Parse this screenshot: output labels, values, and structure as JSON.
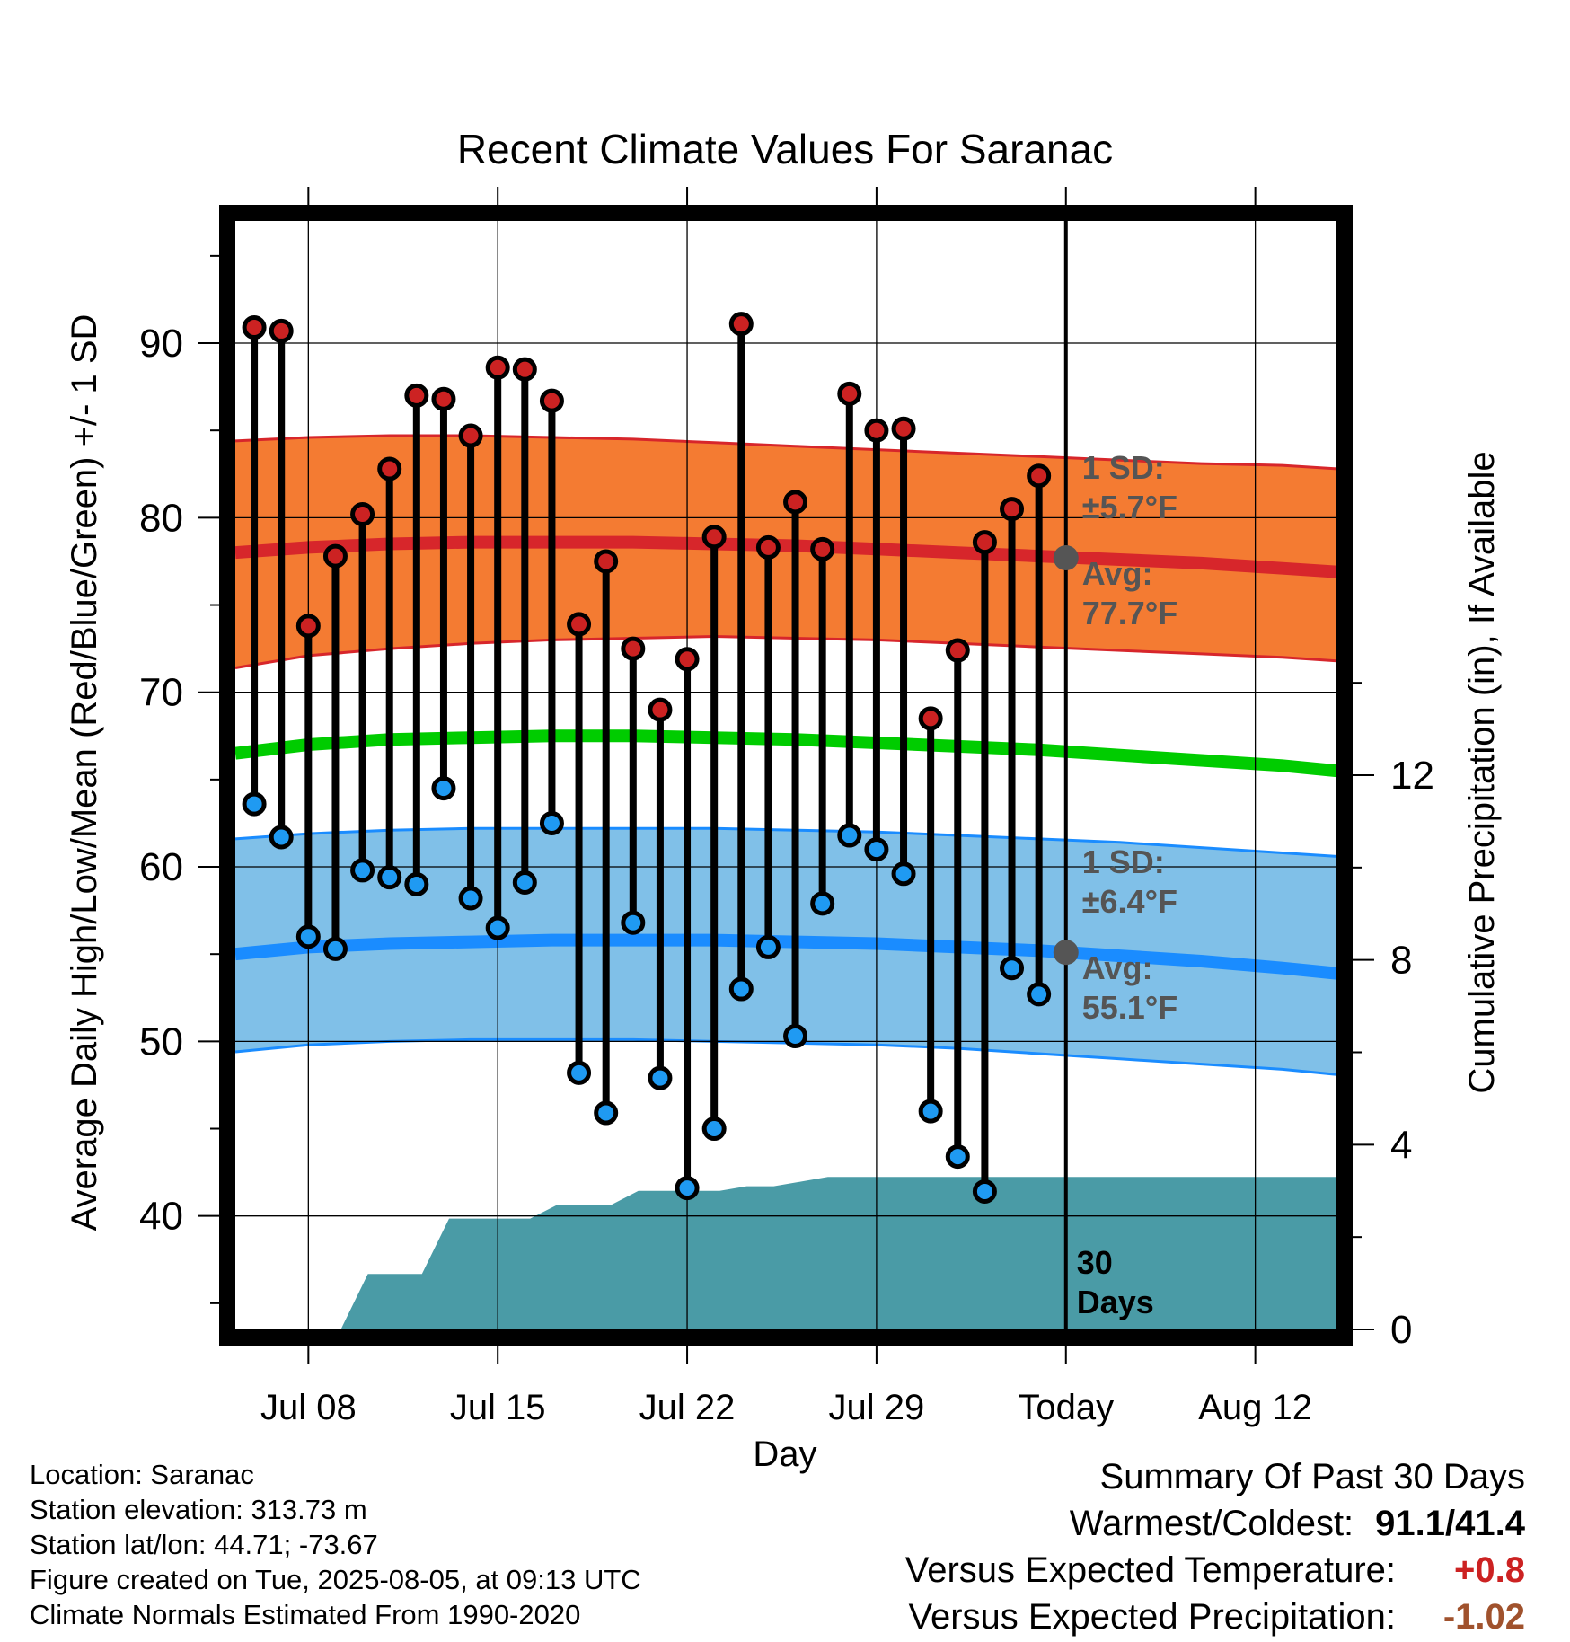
{
  "chart_data": {
    "type": "line",
    "title": "Recent Climate Values For Saranac",
    "xlabel": "Day",
    "ylabel": "Average Daily High/Low/Mean (Red/Blue/Green) +/- 1 SD",
    "y2label": "Cumulative Precipitation (in), If Available",
    "ylim": [
      33.5,
      97
    ],
    "y2lim": [
      0,
      24
    ],
    "x_tick_labels": [
      "Jul 08",
      "Jul 15",
      "Jul 22",
      "Jul 29",
      "Today",
      "Aug 12"
    ],
    "x_tick_days": [
      8,
      15,
      22,
      29,
      36,
      43
    ],
    "y_ticks": [
      40,
      50,
      60,
      70,
      80,
      90
    ],
    "y2_ticks": [
      0,
      4,
      8,
      12
    ],
    "xlim": [
      5.3,
      46.0
    ],
    "today_day": 36,
    "grid": true,
    "daily_observations": {
      "day": [
        6,
        7,
        8,
        9,
        10,
        11,
        12,
        13,
        14,
        15,
        16,
        17,
        18,
        19,
        20,
        21,
        22,
        23,
        24,
        25,
        26,
        27,
        28,
        29,
        30,
        31,
        32,
        33,
        34,
        35
      ],
      "high": [
        90.9,
        90.7,
        73.8,
        77.8,
        80.2,
        82.8,
        87.0,
        86.8,
        84.7,
        88.6,
        88.5,
        86.7,
        73.9,
        77.5,
        72.5,
        69.0,
        71.9,
        78.9,
        91.1,
        78.3,
        80.9,
        78.2,
        87.1,
        85.0,
        85.1,
        68.5,
        72.4,
        78.6,
        80.5,
        82.4
      ],
      "low": [
        63.6,
        61.7,
        56.0,
        55.3,
        59.8,
        59.4,
        59.0,
        64.5,
        58.2,
        56.5,
        59.1,
        62.5,
        48.2,
        45.9,
        56.8,
        47.9,
        41.6,
        45.0,
        53.0,
        55.4,
        50.3,
        57.9,
        61.8,
        61.0,
        59.6,
        46.0,
        43.4,
        41.4,
        54.2,
        52.7
      ]
    },
    "normals": {
      "day": [
        5.3,
        8,
        11,
        14,
        17,
        20,
        23,
        26,
        29,
        32,
        35,
        38,
        41,
        44,
        46.0
      ],
      "high_avg": [
        78.0,
        78.3,
        78.5,
        78.6,
        78.6,
        78.6,
        78.5,
        78.4,
        78.2,
        78.0,
        77.8,
        77.6,
        77.4,
        77.1,
        76.9
      ],
      "high_sd_upper": [
        84.4,
        84.6,
        84.7,
        84.7,
        84.6,
        84.5,
        84.3,
        84.1,
        83.9,
        83.7,
        83.5,
        83.3,
        83.1,
        83.0,
        82.8
      ],
      "high_sd_lower": [
        71.4,
        72.1,
        72.5,
        72.8,
        73.0,
        73.1,
        73.2,
        73.1,
        73.0,
        72.8,
        72.6,
        72.4,
        72.2,
        72.0,
        71.8
      ],
      "mean_avg": [
        66.5,
        67.0,
        67.3,
        67.4,
        67.5,
        67.5,
        67.4,
        67.3,
        67.1,
        66.9,
        66.7,
        66.4,
        66.1,
        65.8,
        65.5
      ],
      "low_avg": [
        55.0,
        55.4,
        55.6,
        55.7,
        55.8,
        55.8,
        55.8,
        55.7,
        55.6,
        55.4,
        55.2,
        54.9,
        54.6,
        54.2,
        53.9
      ],
      "low_sd_upper": [
        61.6,
        61.9,
        62.1,
        62.2,
        62.2,
        62.2,
        62.2,
        62.1,
        62.0,
        61.8,
        61.6,
        61.4,
        61.1,
        60.8,
        60.6
      ],
      "low_sd_lower": [
        49.4,
        49.8,
        50.0,
        50.1,
        50.1,
        50.1,
        50.0,
        49.9,
        49.8,
        49.6,
        49.3,
        49.0,
        48.7,
        48.4,
        48.1
      ]
    },
    "cumulative_precipitation": {
      "day": [
        5.3,
        9.2,
        10.2,
        10.2,
        12.2,
        13.2,
        13.2,
        16.2,
        17.2,
        18.2,
        19.2,
        20.2,
        21.2,
        23.2,
        24.2,
        25.2,
        26.2,
        27.2,
        46.0
      ],
      "inches": [
        0,
        0,
        1.2,
        1.2,
        1.2,
        2.4,
        2.4,
        2.4,
        2.7,
        2.7,
        2.7,
        3.0,
        3.0,
        3.0,
        3.1,
        3.1,
        3.2,
        3.3,
        3.3
      ]
    },
    "annotations": {
      "high_sd_label": "1 SD:",
      "high_sd_value": "±5.7°F",
      "high_avg_label": "Avg:",
      "high_avg_value": "77.7°F",
      "high_avg_today": 77.7,
      "low_sd_label": "1 SD:",
      "low_sd_value": "±6.4°F",
      "low_avg_label": "Avg:",
      "low_avg_value": "55.1°F",
      "low_avg_today": 55.1,
      "days_label_1": "30",
      "days_label_2": "Days"
    },
    "colors": {
      "high_band": "#f47b32",
      "high_line": "#d7262b",
      "mean_line": "#00cc00",
      "low_band": "#80c0e8",
      "low_line": "#1a8cff",
      "precip": "#4a9ba6",
      "high_marker": "#cc2222",
      "low_marker": "#1f9af2",
      "annotation_text": "#555555"
    }
  },
  "info": {
    "location": "Location: Saranac",
    "elevation": "Station elevation: 313.73 m",
    "latlon": "Station lat/lon: 44.71; -73.67",
    "created": "Figure created on Tue, 2025-08-05, at 09:13 UTC",
    "normals": "Climate Normals Estimated From 1990-2020"
  },
  "summary": {
    "title": "Summary Of Past 30 Days",
    "warmest_coldest_label": "Warmest/Coldest:",
    "warmest_coldest_value": "91.1/41.4",
    "temp_label": "Versus Expected Temperature:",
    "temp_value": "+0.8",
    "temp_color": "#cc2222",
    "precip_label": "Versus Expected Precipitation:",
    "precip_value": "-1.02",
    "precip_color": "#a0522d"
  }
}
